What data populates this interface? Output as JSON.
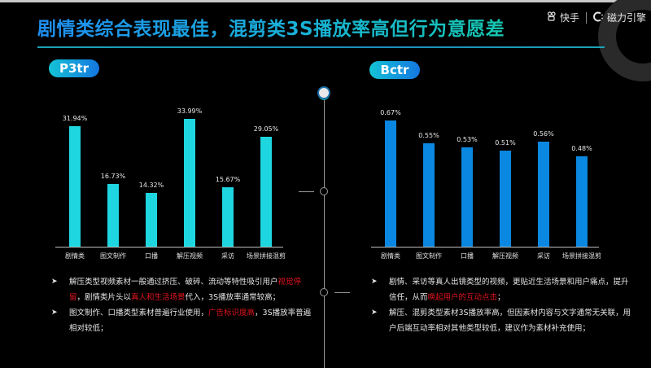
{
  "header": {
    "title": "剧情类综合表现最佳，混剪类3S播放率高但行为意愿差",
    "brand_kuaishou": "快手",
    "brand_kuaishou_icon": "kuaishou-logo-icon",
    "brand_cili": "磁力引擎",
    "brand_cili_icon": "cili-logo-icon"
  },
  "colors": {
    "left_bars": "#1ed6e0",
    "right_bars": "#0a87e0",
    "highlight_text": "#e0141e",
    "title_gradient": [
      "#1f8ef0",
      "#16c7b0"
    ]
  },
  "chart_data": [
    {
      "type": "bar",
      "title": "P3tr",
      "categories": [
        "剧情类",
        "图文制作",
        "口播",
        "解压视频",
        "采访",
        "场景拼接混剪"
      ],
      "values": [
        31.94,
        16.73,
        14.32,
        33.99,
        15.67,
        29.05
      ],
      "value_labels": [
        "31.94%",
        "16.73%",
        "14.32%",
        "33.99%",
        "15.67%",
        "29.05%"
      ],
      "unit": "%",
      "xlabel": "",
      "ylabel": "",
      "ylim": [
        0,
        35
      ],
      "grid": false,
      "legend": "none",
      "color": "#1ed6e0"
    },
    {
      "type": "bar",
      "title": "Bctr",
      "categories": [
        "剧情类",
        "图文制作",
        "口播",
        "解压视频",
        "采访",
        "场景拼接混剪"
      ],
      "values": [
        0.67,
        0.55,
        0.53,
        0.51,
        0.56,
        0.48
      ],
      "value_labels": [
        "0.67%",
        "0.55%",
        "0.53%",
        "0.51%",
        "0.56%",
        "0.48%"
      ],
      "unit": "%",
      "xlabel": "",
      "ylabel": "",
      "ylim": [
        0,
        0.7
      ],
      "grid": false,
      "legend": "none",
      "color": "#0a87e0"
    }
  ],
  "left_notes": [
    {
      "parts": [
        {
          "text": "解压类型视频素材一般通过挤压、破碎、流动等特性吸引用户",
          "red": false
        },
        {
          "text": "视觉停留",
          "red": true
        },
        {
          "text": "，剧情类片头以",
          "red": false
        },
        {
          "text": "真人和生活场景",
          "red": true
        },
        {
          "text": "代入，3S播放率通常较高；",
          "red": false
        }
      ]
    },
    {
      "parts": [
        {
          "text": "图文制作、口播类型素材普遍行业使用，",
          "red": false
        },
        {
          "text": "广告标识度高",
          "red": true
        },
        {
          "text": "，3S播放率普遍相对较低；",
          "red": false
        }
      ]
    }
  ],
  "right_notes": [
    {
      "parts": [
        {
          "text": "剧情、采访等真人出镜类型的视频，更贴近生活场景和用户痛点，提升信任，从而",
          "red": false
        },
        {
          "text": "唤起用户的互动点击",
          "red": true
        },
        {
          "text": "；",
          "red": false
        }
      ]
    },
    {
      "parts": [
        {
          "text": "解压、混剪类型素材3S播放率高，但因素材内容与文字通常无关联，用户后端互动率相对其他类型较低，建议作为素材补充使用；",
          "red": false
        }
      ]
    }
  ]
}
